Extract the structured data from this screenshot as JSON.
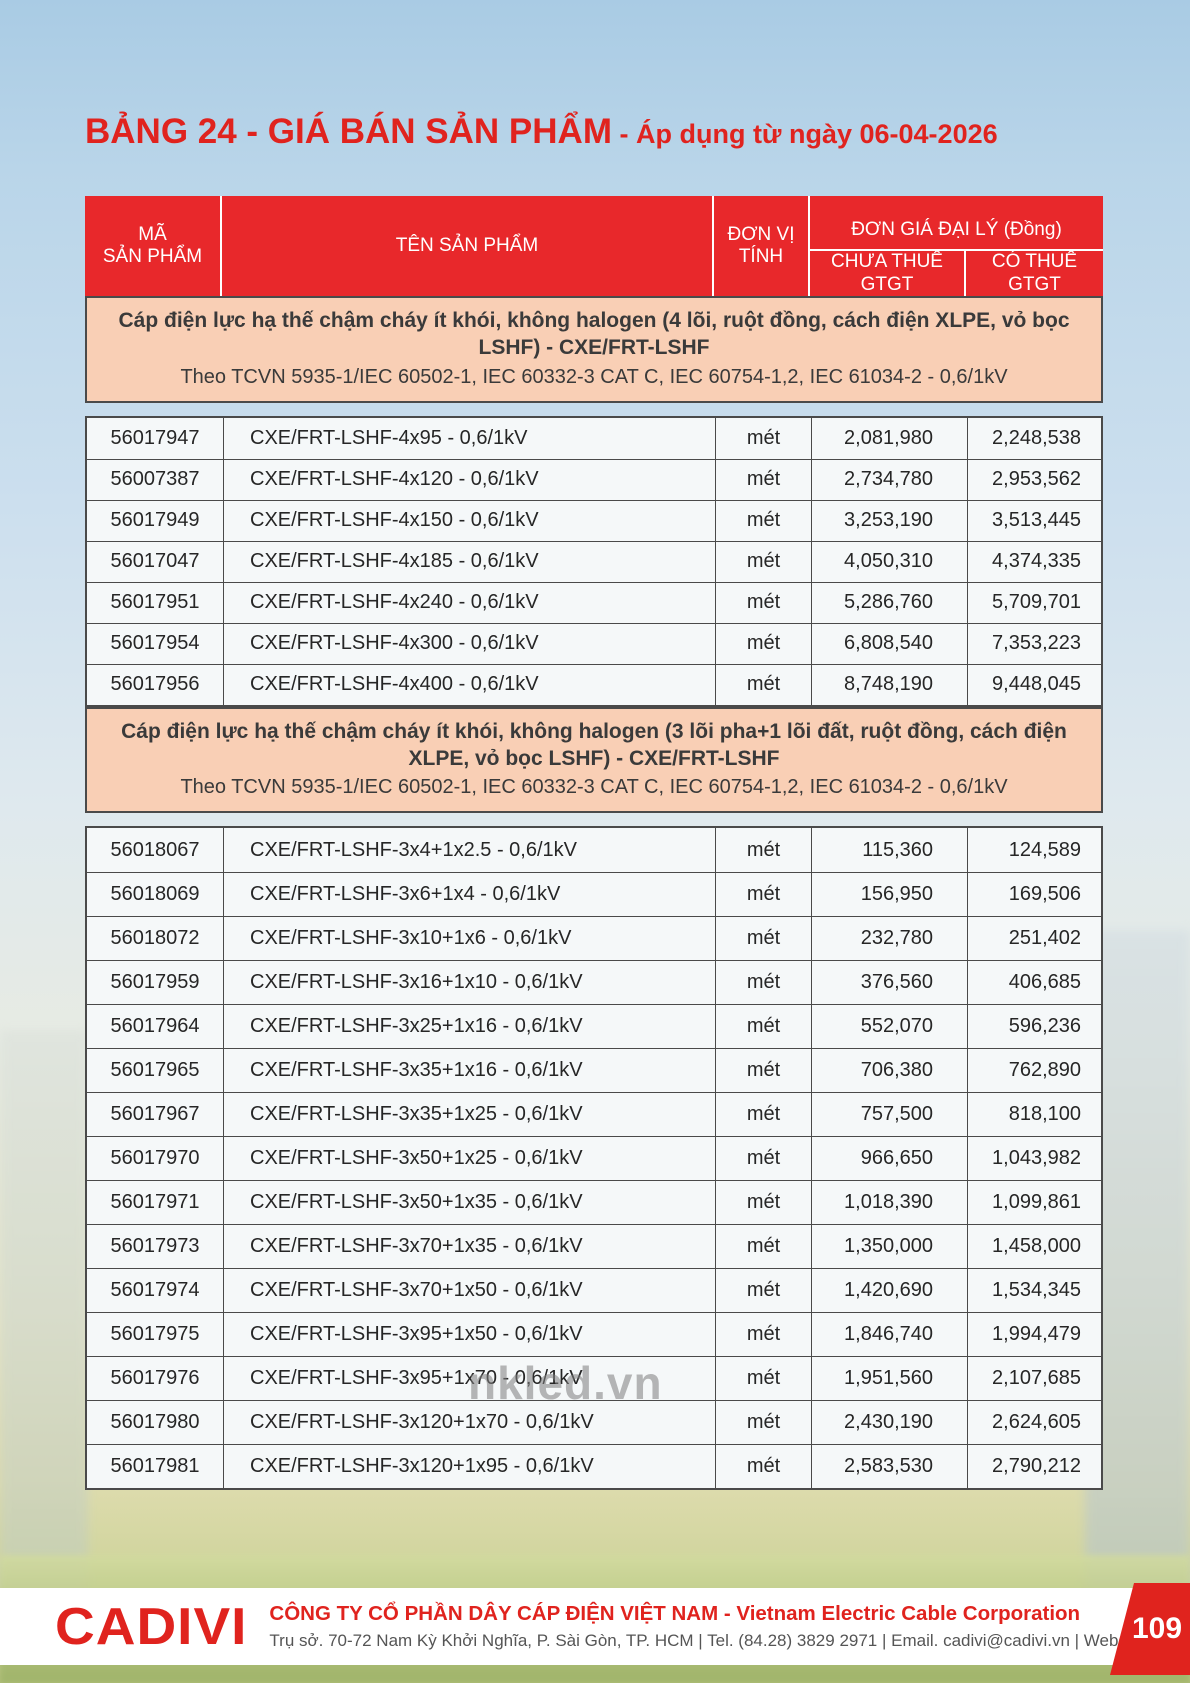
{
  "page": {
    "title_main": "BẢNG 24 - GIÁ BÁN SẢN PHẨM",
    "title_suffix": " - Áp dụng từ ngày 06-04-2026",
    "watermark": "nkled.vn"
  },
  "colors": {
    "accent_red": "#e8282b",
    "band_peach": "#f9cfb5"
  },
  "table": {
    "headers": {
      "col_code": "MÃ\nSẢN PHẨM",
      "col_name": "TÊN SẢN PHẨM",
      "col_unit": "ĐƠN VỊ\nTÍNH",
      "col_price_group": "ĐƠN GIÁ ĐẠI LÝ (Đồng)",
      "col_price_ex": "CHƯA THUẾ\nGTGT",
      "col_price_inc": "CÓ THUẾ\nGTGT"
    },
    "sections": [
      {
        "title": "Cáp điện lực hạ thế chậm cháy ít khói, không halogen (4 lõi, ruột đồng, cách điện XLPE, vỏ bọc LSHF) - CXE/FRT-LSHF",
        "subtitle": "Theo TCVN 5935-1/IEC 60502-1, IEC 60332-3 CAT C, IEC 60754-1,2,  IEC 61034-2 - 0,6/1kV",
        "rows": [
          {
            "code": "56017947",
            "name": "CXE/FRT-LSHF-4x95 - 0,6/1kV",
            "unit": "mét",
            "price_ex": "2,081,980",
            "price_inc": "2,248,538"
          },
          {
            "code": "56007387",
            "name": "CXE/FRT-LSHF-4x120 - 0,6/1kV",
            "unit": "mét",
            "price_ex": "2,734,780",
            "price_inc": "2,953,562"
          },
          {
            "code": "56017949",
            "name": "CXE/FRT-LSHF-4x150 - 0,6/1kV",
            "unit": "mét",
            "price_ex": "3,253,190",
            "price_inc": "3,513,445"
          },
          {
            "code": "56017047",
            "name": "CXE/FRT-LSHF-4x185 - 0,6/1kV",
            "unit": "mét",
            "price_ex": "4,050,310",
            "price_inc": "4,374,335"
          },
          {
            "code": "56017951",
            "name": "CXE/FRT-LSHF-4x240 - 0,6/1kV",
            "unit": "mét",
            "price_ex": "5,286,760",
            "price_inc": "5,709,701"
          },
          {
            "code": "56017954",
            "name": "CXE/FRT-LSHF-4x300 - 0,6/1kV",
            "unit": "mét",
            "price_ex": "6,808,540",
            "price_inc": "7,353,223"
          },
          {
            "code": "56017956",
            "name": "CXE/FRT-LSHF-4x400 - 0,6/1kV",
            "unit": "mét",
            "price_ex": "8,748,190",
            "price_inc": "9,448,045"
          }
        ]
      },
      {
        "title": "Cáp điện lực hạ thế chậm cháy ít khói, không halogen (3 lõi pha+1 lõi đất, ruột đồng, cách điện XLPE, vỏ bọc LSHF) - CXE/FRT-LSHF",
        "subtitle": "Theo TCVN 5935-1/IEC 60502-1, IEC 60332-3 CAT C, IEC 60754-1,2,  IEC 61034-2 - 0,6/1kV",
        "rows": [
          {
            "code": "56018067",
            "name": "CXE/FRT-LSHF-3x4+1x2.5 - 0,6/1kV",
            "unit": "mét",
            "price_ex": "115,360",
            "price_inc": "124,589"
          },
          {
            "code": "56018069",
            "name": "CXE/FRT-LSHF-3x6+1x4 - 0,6/1kV",
            "unit": "mét",
            "price_ex": "156,950",
            "price_inc": "169,506"
          },
          {
            "code": "56018072",
            "name": "CXE/FRT-LSHF-3x10+1x6 - 0,6/1kV",
            "unit": "mét",
            "price_ex": "232,780",
            "price_inc": "251,402"
          },
          {
            "code": "56017959",
            "name": "CXE/FRT-LSHF-3x16+1x10 - 0,6/1kV",
            "unit": "mét",
            "price_ex": "376,560",
            "price_inc": "406,685"
          },
          {
            "code": "56017964",
            "name": "CXE/FRT-LSHF-3x25+1x16 - 0,6/1kV",
            "unit": "mét",
            "price_ex": "552,070",
            "price_inc": "596,236"
          },
          {
            "code": "56017965",
            "name": "CXE/FRT-LSHF-3x35+1x16 - 0,6/1kV",
            "unit": "mét",
            "price_ex": "706,380",
            "price_inc": "762,890"
          },
          {
            "code": "56017967",
            "name": "CXE/FRT-LSHF-3x35+1x25 - 0,6/1kV",
            "unit": "mét",
            "price_ex": "757,500",
            "price_inc": "818,100"
          },
          {
            "code": "56017970",
            "name": "CXE/FRT-LSHF-3x50+1x25 - 0,6/1kV",
            "unit": "mét",
            "price_ex": "966,650",
            "price_inc": "1,043,982"
          },
          {
            "code": "56017971",
            "name": "CXE/FRT-LSHF-3x50+1x35 - 0,6/1kV",
            "unit": "mét",
            "price_ex": "1,018,390",
            "price_inc": "1,099,861"
          },
          {
            "code": "56017973",
            "name": "CXE/FRT-LSHF-3x70+1x35 - 0,6/1kV",
            "unit": "mét",
            "price_ex": "1,350,000",
            "price_inc": "1,458,000"
          },
          {
            "code": "56017974",
            "name": "CXE/FRT-LSHF-3x70+1x50 - 0,6/1kV",
            "unit": "mét",
            "price_ex": "1,420,690",
            "price_inc": "1,534,345"
          },
          {
            "code": "56017975",
            "name": "CXE/FRT-LSHF-3x95+1x50 - 0,6/1kV",
            "unit": "mét",
            "price_ex": "1,846,740",
            "price_inc": "1,994,479"
          },
          {
            "code": "56017976",
            "name": "CXE/FRT-LSHF-3x95+1x70 - 0,6/1kV",
            "unit": "mét",
            "price_ex": "1,951,560",
            "price_inc": "2,107,685"
          },
          {
            "code": "56017980",
            "name": "CXE/FRT-LSHF-3x120+1x70 - 0,6/1kV",
            "unit": "mét",
            "price_ex": "2,430,190",
            "price_inc": "2,624,605"
          },
          {
            "code": "56017981",
            "name": "CXE/FRT-LSHF-3x120+1x95 - 0,6/1kV",
            "unit": "mét",
            "price_ex": "2,583,530",
            "price_inc": "2,790,212"
          }
        ]
      }
    ]
  },
  "footer": {
    "logo": "CADIVI",
    "company_line": "CÔNG TY CỔ PHẦN DÂY CÁP ĐIỆN VIỆT NAM - Vietnam Electric Cable Corporation",
    "address_line": "Trụ sở. 70-72 Nam Kỳ Khởi Nghĩa, P. Sài Gòn, TP. HCM | Tel. (84.28) 3829 2971 | Email. cadivi@cadivi.vn | Website. cadivi.vn",
    "page_number": "109"
  }
}
